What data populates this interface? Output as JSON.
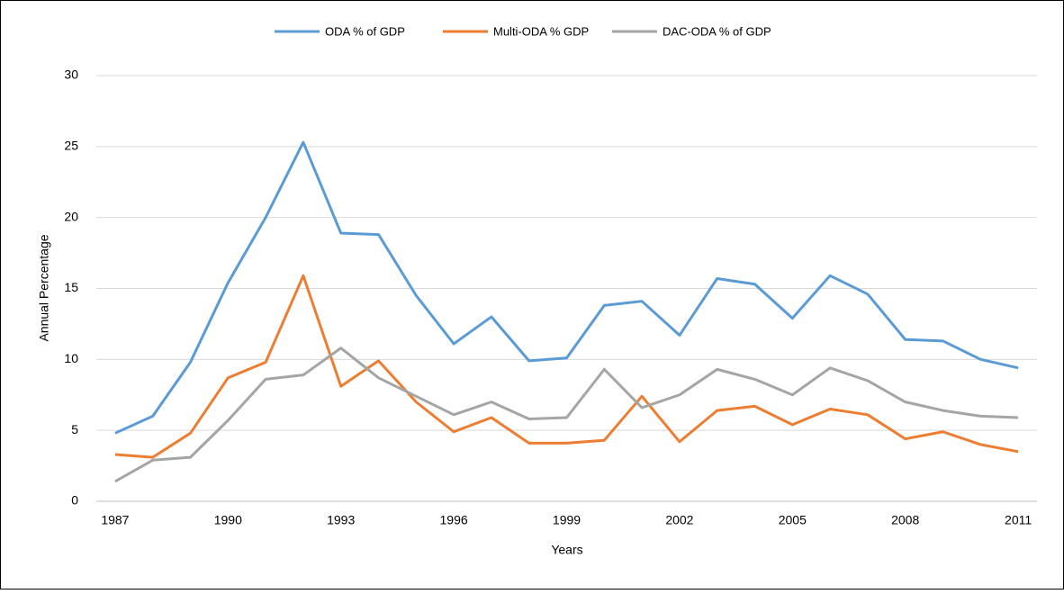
{
  "chart_data": {
    "type": "line",
    "x_label": "Years",
    "y_label": "Annual Percentage",
    "x": [
      1987,
      1988,
      1989,
      1990,
      1991,
      1992,
      1993,
      1994,
      1995,
      1996,
      1997,
      1998,
      1999,
      2000,
      2001,
      2002,
      2003,
      2004,
      2005,
      2006,
      2007,
      2008,
      2009,
      2010,
      2011
    ],
    "series": [
      {
        "name": "ODA % of GDP",
        "color": "#5b9bd5",
        "values": [
          4.8,
          6.0,
          9.8,
          15.4,
          20.0,
          25.3,
          18.9,
          18.8,
          14.5,
          11.1,
          13.0,
          9.9,
          10.1,
          13.8,
          14.1,
          11.7,
          15.7,
          15.3,
          12.9,
          15.9,
          14.6,
          11.4,
          11.3,
          10.0,
          9.4
        ]
      },
      {
        "name": "Multi-ODA % GDP",
        "color": "#ed7d31",
        "values": [
          3.3,
          3.1,
          4.8,
          8.7,
          9.8,
          15.9,
          8.1,
          9.9,
          7.0,
          4.9,
          5.9,
          4.1,
          4.1,
          4.3,
          7.4,
          4.2,
          6.4,
          6.7,
          5.4,
          6.5,
          6.1,
          4.4,
          4.9,
          4.0,
          3.5
        ]
      },
      {
        "name": "DAC-ODA % of GDP",
        "color": "#a5a5a5",
        "values": [
          1.4,
          2.9,
          3.1,
          5.7,
          8.6,
          8.9,
          10.8,
          8.7,
          7.4,
          6.1,
          7.0,
          5.8,
          5.9,
          9.3,
          6.6,
          7.5,
          9.3,
          8.6,
          7.5,
          9.4,
          8.5,
          7.0,
          6.4,
          6.0,
          5.9
        ]
      }
    ],
    "xlim": [
      1986.5,
      2011.5
    ],
    "xticks": [
      1987,
      1990,
      1993,
      1996,
      1999,
      2002,
      2005,
      2008,
      2011
    ],
    "ylim": [
      0,
      30
    ],
    "yticks": [
      0,
      5,
      10,
      15,
      20,
      25,
      30
    ],
    "grid": true,
    "legend": "top"
  }
}
